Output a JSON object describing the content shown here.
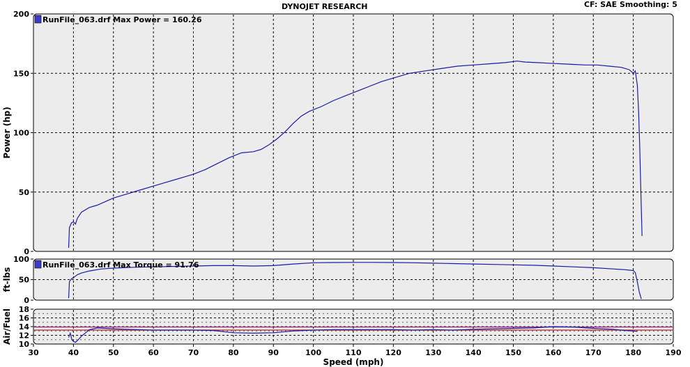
{
  "header": {
    "title": "DYNOJET RESEARCH",
    "settings": "CF: SAE  Smoothing: 5"
  },
  "chart_data": [
    {
      "type": "line",
      "id": "power",
      "annotation": "RunFile_063.drf Max Power = 160.26",
      "xlabel": "Speed (mph)",
      "ylabel": "Power (hp)",
      "xlim": [
        30,
        190
      ],
      "ylim": [
        0,
        200
      ],
      "xticks": [
        30,
        40,
        50,
        60,
        70,
        80,
        90,
        100,
        110,
        120,
        130,
        140,
        150,
        160,
        170,
        180,
        190
      ],
      "yticks": [
        0,
        50,
        100,
        150,
        200
      ],
      "grid": true,
      "line_color": "#1a1aa6",
      "series": [
        {
          "x": [
            38.8,
            39,
            39.5,
            40,
            40.5,
            41,
            42,
            44,
            46,
            48,
            50,
            53,
            56,
            60,
            63,
            66,
            70,
            73,
            76,
            79,
            82,
            85,
            87,
            89,
            91,
            93,
            95,
            97,
            99,
            102,
            105,
            108,
            111,
            114,
            117,
            120,
            124,
            128,
            132,
            136,
            140,
            144,
            148,
            151,
            153,
            156,
            159,
            162,
            165,
            168,
            171,
            174,
            177,
            179,
            180,
            180.5,
            181,
            181.3,
            181.6,
            181.9,
            182.2
          ],
          "y": [
            3,
            20,
            24,
            25,
            23,
            28,
            33,
            37,
            39,
            42,
            45,
            48,
            51,
            55,
            58,
            61,
            65,
            69,
            74,
            79,
            83,
            84,
            86,
            90,
            95,
            101,
            108,
            114,
            118,
            122,
            127,
            131,
            135,
            139,
            143,
            146,
            150,
            152,
            154,
            156,
            157,
            158,
            159,
            160.3,
            159.5,
            159,
            158.5,
            158,
            157.5,
            157,
            157,
            156,
            155,
            153,
            150,
            152,
            140,
            120,
            90,
            50,
            13
          ]
        }
      ]
    },
    {
      "type": "line",
      "id": "torque",
      "annotation": "RunFile_063.drf Max Torque = 91.76",
      "ylabel": "ft-lbs",
      "xlim": [
        30,
        190
      ],
      "ylim": [
        0,
        100
      ],
      "yticks": [
        0,
        50,
        100
      ],
      "grid": true,
      "line_color": "#1a1aa6",
      "series": [
        {
          "x": [
            38.8,
            39,
            39.5,
            40,
            41,
            42,
            44,
            47,
            50,
            55,
            60,
            65,
            70,
            75,
            80,
            85,
            90,
            95,
            100,
            105,
            110,
            115,
            120,
            125,
            130,
            135,
            140,
            145,
            150,
            155,
            160,
            165,
            170,
            175,
            178,
            180,
            180.5,
            181,
            181.5,
            182
          ],
          "y": [
            5,
            45,
            52,
            55,
            62,
            66,
            71,
            76,
            78,
            80,
            81,
            82,
            83,
            84,
            84,
            83,
            84,
            88,
            91,
            91.5,
            91.8,
            91.8,
            91.5,
            91,
            90,
            89,
            88,
            87,
            86,
            85,
            83,
            81,
            79,
            76,
            74,
            72,
            67,
            45,
            20,
            3
          ]
        }
      ]
    },
    {
      "type": "line",
      "id": "airfuel",
      "ylabel": "Air/Fuel",
      "xlim": [
        30,
        190
      ],
      "ylim": [
        10,
        18
      ],
      "yticks": [
        10,
        12,
        14,
        16,
        18
      ],
      "grid": true,
      "reference_lines": [
        13.2,
        13.9
      ],
      "reference_colors": [
        "#c81e1e",
        "#a01e78"
      ],
      "line_color": "#1a1aa6",
      "series": [
        {
          "x": [
            38.8,
            39.2,
            39.6,
            40,
            40.5,
            41,
            42,
            44,
            46,
            48,
            50,
            53,
            56,
            60,
            65,
            70,
            75,
            80,
            85,
            90,
            95,
            100,
            105,
            110,
            115,
            120,
            125,
            130,
            135,
            140,
            145,
            150,
            155,
            160,
            165,
            170,
            175,
            178,
            180,
            181
          ],
          "y": [
            11.5,
            12.5,
            11,
            10.6,
            10.4,
            10.8,
            11.8,
            13.3,
            13.7,
            13.6,
            13.5,
            13.4,
            13.3,
            13.2,
            13.2,
            13.2,
            13.1,
            12.6,
            12.5,
            12.6,
            13.0,
            13.2,
            13.3,
            13.3,
            13.3,
            13.3,
            13.2,
            13.3,
            13.2,
            13.4,
            13.5,
            13.6,
            13.7,
            14.0,
            13.9,
            13.6,
            13.4,
            13.1,
            13.0,
            12.9
          ]
        }
      ]
    }
  ]
}
